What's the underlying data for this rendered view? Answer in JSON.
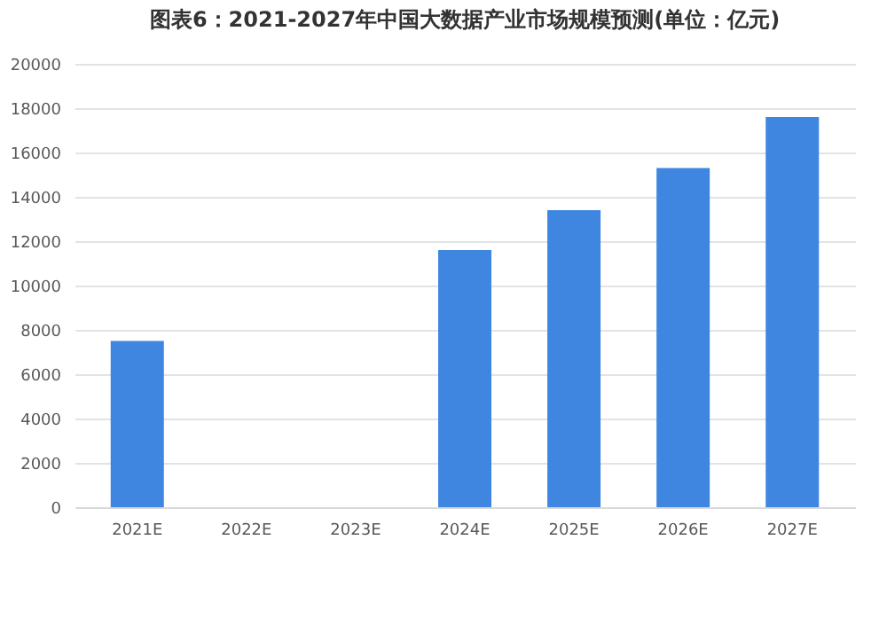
{
  "chart_data": {
    "type": "bar",
    "title": "图表6：2021-2027年中国大数据产业市场规模预测(单位：亿元)",
    "categories": [
      "2021E",
      "2022E",
      "2023E",
      "2024E",
      "2025E",
      "2026E",
      "2027E"
    ],
    "values": [
      7500,
      null,
      null,
      11600,
      13400,
      15300,
      17600
    ],
    "color": "#3f86e0",
    "ylim": [
      0,
      20000
    ],
    "yticks": [
      0,
      2000,
      4000,
      6000,
      8000,
      10000,
      12000,
      14000,
      16000,
      18000,
      20000
    ],
    "grid": "y"
  }
}
